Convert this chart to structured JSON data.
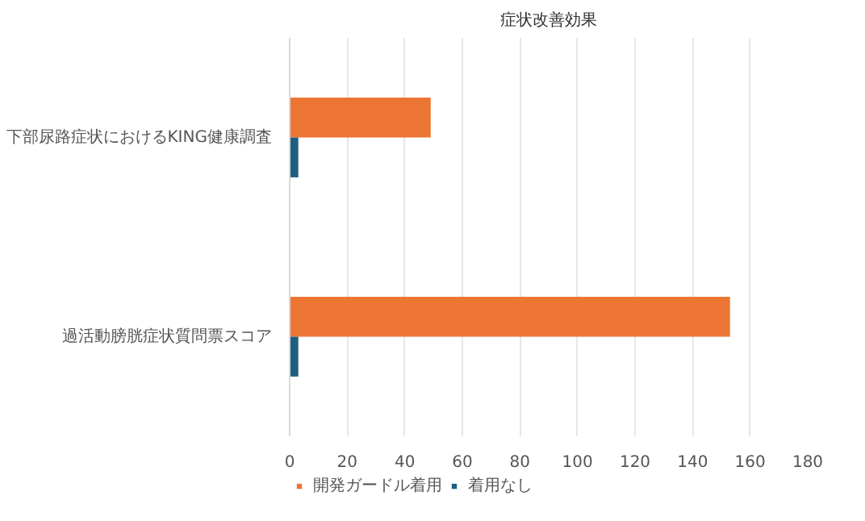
{
  "chart_data": {
    "type": "bar",
    "orientation": "horizontal",
    "title": "症状改善効果",
    "categories": [
      "下部尿路症状におけるKING健康調査",
      "過活動膀胱症状質問票スコア"
    ],
    "series": [
      {
        "name": "開発ガードル着用",
        "color": "#ed7533",
        "values": [
          49,
          153
        ]
      },
      {
        "name": "着用なし",
        "color": "#1f5f7f",
        "values": [
          3,
          3
        ]
      }
    ],
    "xlim": [
      0,
      180
    ],
    "xticks": [
      0,
      20,
      40,
      60,
      80,
      100,
      120,
      140,
      160,
      180
    ],
    "grid": "x",
    "legend": "bottom"
  }
}
